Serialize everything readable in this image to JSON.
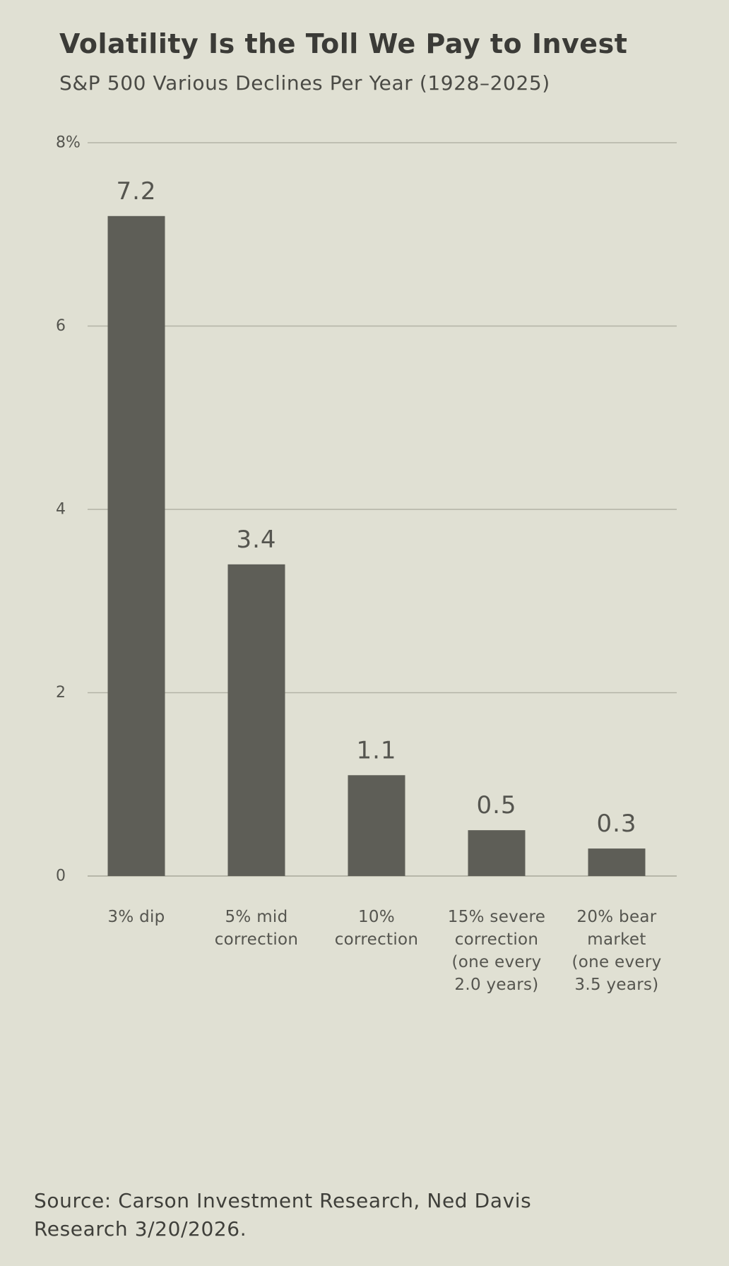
{
  "chart_data": {
    "type": "bar",
    "title": "Volatility Is the Toll We Pay to Invest",
    "subtitle": "S&P 500 Various Declines Per Year (1928–2025)",
    "categories": [
      [
        "3% dip"
      ],
      [
        "5% mid",
        "correction"
      ],
      [
        "10%",
        "correction"
      ],
      [
        "15% severe",
        "correction",
        "(one every",
        "2.0 years)"
      ],
      [
        "20% bear",
        "market",
        "(one every",
        "3.5 years)"
      ]
    ],
    "values": [
      7.2,
      3.4,
      1.1,
      0.5,
      0.3
    ],
    "data_labels": [
      "7.2",
      "3.4",
      "1.1",
      "0.5",
      "0.3"
    ],
    "y_ticks": [
      0,
      2,
      4,
      6,
      8
    ],
    "y_tick_labels": [
      "0",
      "2",
      "4",
      "6",
      "8%"
    ],
    "ylim": [
      0,
      8
    ],
    "xlabel": "",
    "ylabel": "",
    "grid": true,
    "legend": "none",
    "colors": {
      "bar": "#5e5e57",
      "grid": "#b3b3a6",
      "axis": "#a9a99b",
      "tick_label": "#55554f",
      "data_label": "#55554f",
      "category_label": "#55554f",
      "background": "#e0e0d3"
    }
  },
  "source": "Source: Carson Investment Research, Ned Davis Research 3/20/2026."
}
